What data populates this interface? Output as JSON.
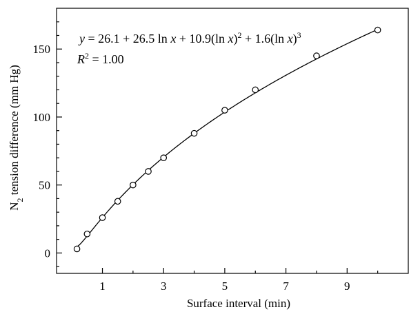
{
  "chart_data": {
    "type": "scatter",
    "xlabel": "Surface interval (min)",
    "ylabel_main": "N",
    "ylabel_sub": "2",
    "ylabel_rest": " tension difference (mm Hg)",
    "xlim": [
      -0.5,
      11
    ],
    "ylim": [
      -15,
      180
    ],
    "xticks": [
      1,
      3,
      5,
      7,
      9
    ],
    "xtick_labels": [
      "1",
      "3",
      "5",
      "7",
      "9"
    ],
    "xticks_minor": [
      2,
      4,
      6,
      8,
      10
    ],
    "yticks": [
      0,
      50,
      100,
      150
    ],
    "ytick_labels": [
      "0",
      "50",
      "100",
      "150"
    ],
    "ytick_minor": [
      -10,
      10,
      20,
      30,
      40,
      60,
      70,
      80,
      90,
      110,
      120,
      130,
      140,
      160,
      170
    ],
    "points": [
      {
        "x": 0.167,
        "y": 3
      },
      {
        "x": 0.5,
        "y": 14
      },
      {
        "x": 1,
        "y": 26
      },
      {
        "x": 1.5,
        "y": 38
      },
      {
        "x": 2,
        "y": 50
      },
      {
        "x": 2.5,
        "y": 60
      },
      {
        "x": 3,
        "y": 70
      },
      {
        "x": 4,
        "y": 88
      },
      {
        "x": 5,
        "y": 105
      },
      {
        "x": 6,
        "y": 120
      },
      {
        "x": 8,
        "y": 145
      },
      {
        "x": 10,
        "y": 164
      }
    ],
    "fit": {
      "model": "y = a + b*ln(x) + c*ln(x)^2 + d*ln(x)^3",
      "a": 26.1,
      "b": 26.5,
      "c": 10.9,
      "d": 1.6,
      "x_from": 0.15,
      "x_to": 10
    },
    "equation": {
      "y": "y",
      "lhs_rest": " = 26.1 + 26.5 ln ",
      "x1": "x",
      "mid1": " + 10.9(ln ",
      "x2": "x",
      "close2": ")",
      "sup2": "2",
      "mid2": " + 1.6(ln ",
      "x3": "x",
      "close3": ")",
      "sup3": "3"
    },
    "r2": {
      "R": "R",
      "sup": "2",
      "rest": " = 1.00"
    },
    "grid": false,
    "legend": false
  }
}
